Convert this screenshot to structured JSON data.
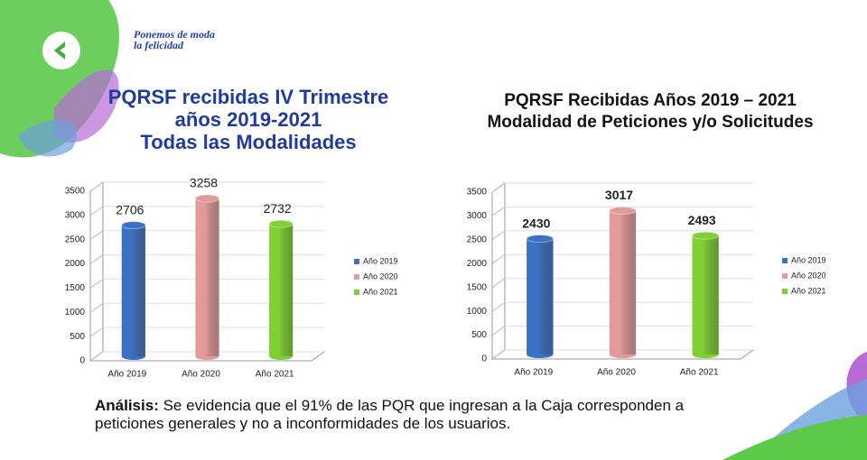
{
  "logo": {
    "text": "Ponemos de moda la felicidad"
  },
  "analysis": {
    "label": "Análisis:",
    "text": "Se evidencia que el 91% de las PQR que ingresan a la Caja corresponden a peticiones generales y no a inconformidades de los usuarios."
  },
  "chart_data": [
    {
      "type": "bar",
      "title": "PQRSF recibidas IV Trimestre años 2019-2021",
      "subtitle": "Todas las Modalidades",
      "categories": [
        "Año 2019",
        "Año 2020",
        "Año 2021"
      ],
      "values": [
        2706,
        3258,
        2732
      ],
      "colors": [
        "#3c70c2",
        "#e39a9a",
        "#7fd033"
      ],
      "legend": [
        "Año 2019",
        "Año 2020",
        "Año 2021"
      ],
      "ylim": [
        0,
        3500
      ],
      "yticks": [
        0,
        500,
        1000,
        1500,
        2000,
        2500,
        3000,
        3500
      ]
    },
    {
      "type": "bar",
      "title": "PQRSF Recibidas Años 2019 – 2021",
      "subtitle": "Modalidad de Peticiones y/o Solicitudes",
      "categories": [
        "Año 2019",
        "Año 2020",
        "Año 2021"
      ],
      "values": [
        2430,
        3017,
        2493
      ],
      "colors": [
        "#3c70c2",
        "#e39a9a",
        "#7fd033"
      ],
      "legend": [
        "Año 2019",
        "Año 2020",
        "Año 2021"
      ],
      "ylim": [
        0,
        3500
      ],
      "yticks": [
        0,
        500,
        1000,
        1500,
        2000,
        2500,
        3000,
        3500
      ]
    }
  ]
}
